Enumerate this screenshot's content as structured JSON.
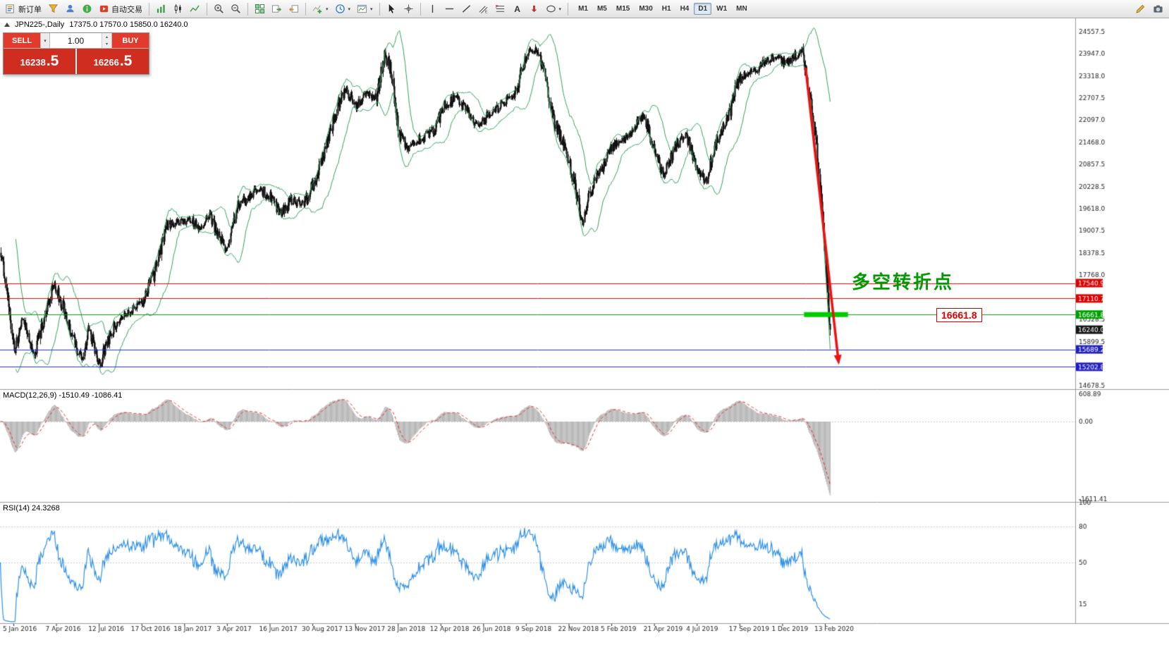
{
  "toolbar": {
    "new_order_label": "新订单",
    "autotrade_label": "自动交易",
    "timeframes": [
      "M1",
      "M5",
      "M15",
      "M30",
      "H1",
      "H4",
      "D1",
      "W1",
      "MN"
    ],
    "active_timeframe": "D1"
  },
  "trade_panel": {
    "sell_label": "SELL",
    "buy_label": "BUY",
    "volume": "1.00",
    "sell_price_int": "16238",
    "sell_price_frac": ".5",
    "buy_price_int": "16266",
    "buy_price_frac": ".5"
  },
  "chart_header": {
    "symbol": "JPN225-,Daily",
    "ohlc": "17375.0 17570.0 15850.0 16240.0"
  },
  "indicator_labels": {
    "macd": "MACD(12,26,9) -1510.49 -1086.41",
    "rsi": "RSI(14) 24.3268"
  },
  "annotations": {
    "turning_point": "多空转折点",
    "support_callout": "16661.8"
  },
  "ui_colors": {
    "panel_red": "#e23b2e",
    "panel_red_dark": "#cf2d20",
    "toolbar_active": "#dfe9f5"
  },
  "chart_data": {
    "type": "candlestick",
    "symbol": "JPN225-",
    "timeframe": "Daily",
    "day_open": 17375.0,
    "day_high": 17570.0,
    "day_low": 15850.0,
    "day_close": 16240.0,
    "ylim": [
      14678.5,
      24557.5
    ],
    "price_axis_labels": [
      "24557.5",
      "23947.0",
      "23318.0",
      "22707.5",
      "22097.0",
      "21468.0",
      "20857.5",
      "20228.5",
      "19618.0",
      "19007.5",
      "18378.5",
      "17768.0",
      "16528.5",
      "15899.5",
      "14678.5"
    ],
    "price_tags": [
      {
        "label": "17540.9",
        "price": 17540.9,
        "bg": "#e00000"
      },
      {
        "label": "17110.7",
        "price": 17110.7,
        "bg": "#e00000"
      },
      {
        "label": "16661.8",
        "price": 16661.8,
        "bg": "#00a000"
      },
      {
        "label": "16240.0",
        "price": 16240.0,
        "bg": "#151515"
      },
      {
        "label": "15689.2",
        "price": 15689.2,
        "bg": "#2020c0"
      },
      {
        "label": "15202.8",
        "price": 15202.8,
        "bg": "#2020c0"
      }
    ],
    "h_lines": [
      {
        "price": 17540.9,
        "color": "#ee0000"
      },
      {
        "price": 17110.7,
        "color": "#ee0000"
      },
      {
        "price": 16661.8,
        "color": "#00a000"
      },
      {
        "price": 15689.2,
        "color": "#2233cc"
      },
      {
        "price": 15202.8,
        "color": "#2233cc"
      }
    ],
    "highlight_segment": {
      "price": 16661.8,
      "x_from_frac": 0.968,
      "x_to_frac": 1.021,
      "color": "#00cc00"
    },
    "arrow": {
      "from_frac": 0.97,
      "from_price": 23550,
      "to_frac": 1.01,
      "to_price": 15260,
      "color": "#ee1111"
    },
    "dates": [
      "5 Jan 2016",
      "7 Apr 2016",
      "12 Jul 2016",
      "17 Oct 2016",
      "18 Jan 2017",
      "3 Apr 2017",
      "16 Jun 2017",
      "30 Aug 2017",
      "13 Nov 2017",
      "28 Jan 2018",
      "12 Apr 2018",
      "26 Jun 2018",
      "9 Sep 2018",
      "22 Nov 2018",
      "5 Feb 2019",
      "21 Apr 2019",
      "4 Jul 2019",
      "17 Sep 2019",
      "1 Dec 2019",
      "13 Feb 2020"
    ],
    "macd": {
      "params": "12,26,9",
      "main": -1510.49,
      "signal": -1086.41,
      "axis": [
        608.89,
        0,
        -1611.41
      ]
    },
    "rsi": {
      "params": "14",
      "value": 24.3268,
      "axis": [
        100,
        80,
        50,
        15
      ],
      "levels": [
        80,
        50
      ]
    },
    "bollinger": {
      "period": 20,
      "deviation": 2
    },
    "candle_count": 1030,
    "seed": 987654321,
    "trend_waypoints": [
      [
        0,
        18400
      ],
      [
        0.008,
        17300
      ],
      [
        0.017,
        15600
      ],
      [
        0.026,
        16600
      ],
      [
        0.04,
        15500
      ],
      [
        0.052,
        16500
      ],
      [
        0.064,
        17550
      ],
      [
        0.075,
        16900
      ],
      [
        0.085,
        16200
      ],
      [
        0.098,
        15350
      ],
      [
        0.106,
        16300
      ],
      [
        0.119,
        15250
      ],
      [
        0.13,
        16000
      ],
      [
        0.142,
        16550
      ],
      [
        0.159,
        16800
      ],
      [
        0.172,
        17100
      ],
      [
        0.185,
        17800
      ],
      [
        0.2,
        19100
      ],
      [
        0.212,
        19250
      ],
      [
        0.228,
        19300
      ],
      [
        0.24,
        19100
      ],
      [
        0.252,
        19450
      ],
      [
        0.261,
        18950
      ],
      [
        0.272,
        18400
      ],
      [
        0.285,
        19650
      ],
      [
        0.298,
        19950
      ],
      [
        0.312,
        20150
      ],
      [
        0.325,
        19950
      ],
      [
        0.338,
        19450
      ],
      [
        0.352,
        19900
      ],
      [
        0.364,
        19700
      ],
      [
        0.378,
        20350
      ],
      [
        0.394,
        21500
      ],
      [
        0.408,
        22600
      ],
      [
        0.416,
        22950
      ],
      [
        0.428,
        22400
      ],
      [
        0.44,
        22850
      ],
      [
        0.452,
        22650
      ],
      [
        0.463,
        23950
      ],
      [
        0.47,
        23500
      ],
      [
        0.48,
        21700
      ],
      [
        0.492,
        21300
      ],
      [
        0.504,
        21550
      ],
      [
        0.519,
        21700
      ],
      [
        0.534,
        22450
      ],
      [
        0.548,
        22750
      ],
      [
        0.562,
        22400
      ],
      [
        0.575,
        21900
      ],
      [
        0.589,
        22250
      ],
      [
        0.604,
        22550
      ],
      [
        0.62,
        22800
      ],
      [
        0.633,
        23900
      ],
      [
        0.645,
        24050
      ],
      [
        0.655,
        23400
      ],
      [
        0.668,
        22000
      ],
      [
        0.68,
        21300
      ],
      [
        0.692,
        20300
      ],
      [
        0.701,
        19200
      ],
      [
        0.712,
        20200
      ],
      [
        0.724,
        20700
      ],
      [
        0.738,
        21350
      ],
      [
        0.752,
        21600
      ],
      [
        0.764,
        21900
      ],
      [
        0.775,
        22250
      ],
      [
        0.788,
        21300
      ],
      [
        0.8,
        20550
      ],
      [
        0.812,
        21300
      ],
      [
        0.826,
        21700
      ],
      [
        0.838,
        20850
      ],
      [
        0.85,
        20350
      ],
      [
        0.862,
        21450
      ],
      [
        0.876,
        22100
      ],
      [
        0.89,
        23250
      ],
      [
        0.904,
        23400
      ],
      [
        0.918,
        23650
      ],
      [
        0.932,
        23850
      ],
      [
        0.944,
        23700
      ],
      [
        0.956,
        23850
      ],
      [
        0.966,
        23950
      ],
      [
        0.972,
        23200
      ],
      [
        0.978,
        22300
      ],
      [
        0.984,
        21200
      ],
      [
        0.99,
        19600
      ],
      [
        0.995,
        17800
      ],
      [
        1,
        16240
      ]
    ],
    "colors": {
      "candle": "#111111",
      "band": "#2fa05a",
      "macd_hist": "#b8b8b8",
      "macd_signal": "#ee2222",
      "rsi_line": "#2f8fe6",
      "axis_text": "#222222",
      "separator": "#9a9a9a",
      "level_dash": "#c8c8c8"
    }
  }
}
